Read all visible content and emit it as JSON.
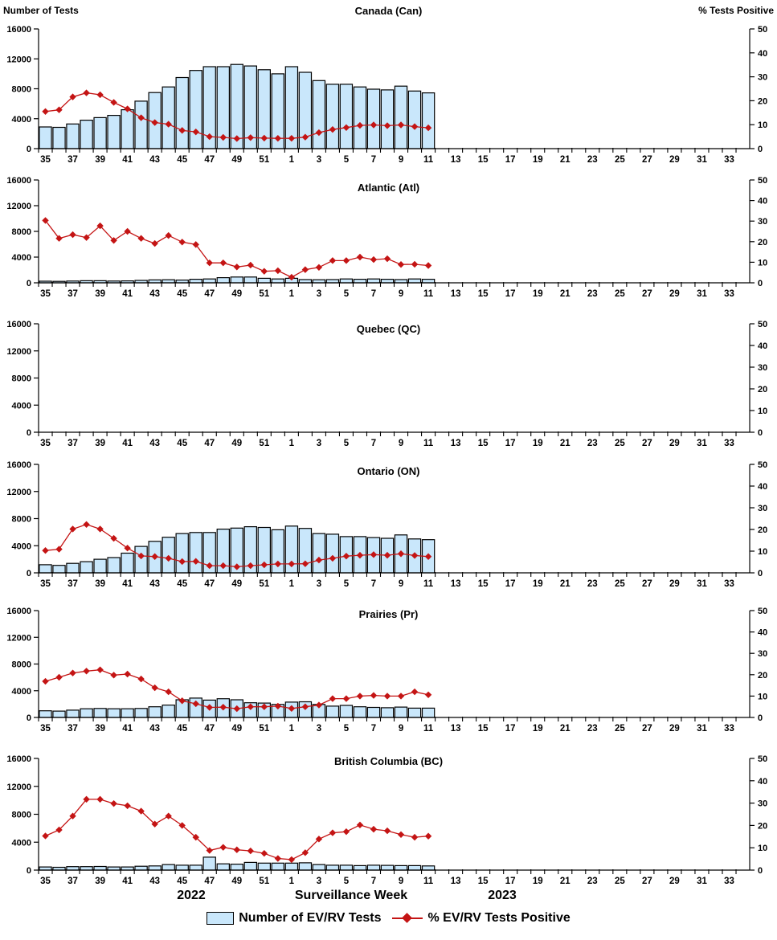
{
  "chart_data": {
    "type": "multi-panel bar+line",
    "x_label": "Surveillance Week",
    "x_years": [
      "2022",
      "2023"
    ],
    "weeks": [
      35,
      36,
      37,
      38,
      39,
      40,
      41,
      42,
      43,
      44,
      45,
      46,
      47,
      48,
      49,
      50,
      51,
      52,
      1,
      2,
      3,
      4,
      5,
      6,
      7,
      8,
      9,
      10,
      11
    ],
    "x_tick_labels": [
      "35",
      "37",
      "39",
      "41",
      "43",
      "45",
      "47",
      "49",
      "51",
      "1",
      "3",
      "5",
      "7",
      "9",
      "11",
      "13",
      "15",
      "17",
      "19",
      "21",
      "23",
      "25",
      "27",
      "29",
      "31",
      "33"
    ],
    "left_axis": {
      "label": "Number of Tests",
      "ticks": [
        0,
        4000,
        8000,
        12000,
        16000
      ],
      "max": 16000
    },
    "right_axis": {
      "label": "% Tests Positive",
      "ticks": [
        0,
        10,
        20,
        30,
        40,
        50
      ],
      "max": 50
    },
    "series_labels": {
      "bars": "Number of EV/RV Tests",
      "line": "% EV/RV Tests Positive"
    },
    "colors": {
      "bar_fill": "#C9E7FB",
      "bar_stroke": "#000000",
      "line": "#C41414"
    },
    "panels": [
      {
        "title": "Canada (Can)",
        "tests": [
          2900,
          2850,
          3300,
          3800,
          4150,
          4450,
          5200,
          6350,
          7500,
          8250,
          9500,
          10450,
          10950,
          10950,
          11250,
          11050,
          10550,
          10000,
          10950,
          10200,
          9100,
          8600,
          8600,
          8250,
          7950,
          7850,
          8350,
          7700,
          7450
        ],
        "pct_positive": [
          15.5,
          16.2,
          21.6,
          23.3,
          22.5,
          19.3,
          16.6,
          12.9,
          10.9,
          10.2,
          7.6,
          7.0,
          5.0,
          4.7,
          4.2,
          4.6,
          4.4,
          4.3,
          4.3,
          4.8,
          6.7,
          8.0,
          8.8,
          9.7,
          9.9,
          9.6,
          9.9,
          9.2,
          8.7
        ]
      },
      {
        "title": "Atlantic (Atl)",
        "tests": [
          250,
          230,
          280,
          330,
          330,
          280,
          300,
          380,
          450,
          470,
          430,
          550,
          600,
          800,
          900,
          900,
          700,
          600,
          700,
          500,
          480,
          500,
          600,
          550,
          600,
          550,
          500,
          600,
          550
        ],
        "pct_positive": [
          30.3,
          21.6,
          23.4,
          22.0,
          27.7,
          20.6,
          25.0,
          21.6,
          19.1,
          23.0,
          19.8,
          18.6,
          9.7,
          9.7,
          7.7,
          8.6,
          5.6,
          5.9,
          2.7,
          6.4,
          7.5,
          10.8,
          10.8,
          12.5,
          11.3,
          11.7,
          8.9,
          9.0,
          8.4
        ]
      },
      {
        "title": "Quebec (QC)",
        "tests": [],
        "pct_positive": []
      },
      {
        "title": "Ontario (ON)",
        "tests": [
          1200,
          1100,
          1400,
          1650,
          2000,
          2250,
          2900,
          3900,
          4650,
          5250,
          5800,
          5950,
          5950,
          6450,
          6600,
          6800,
          6700,
          6350,
          6900,
          6550,
          5800,
          5700,
          5350,
          5350,
          5200,
          5100,
          5600,
          5000,
          4900
        ],
        "pct_positive": [
          10.3,
          10.9,
          20.2,
          22.3,
          20.2,
          15.9,
          11.4,
          7.8,
          7.5,
          6.7,
          5.2,
          5.3,
          3.3,
          3.3,
          2.8,
          3.3,
          3.7,
          4.1,
          4.1,
          4.2,
          5.9,
          6.7,
          7.7,
          8.1,
          8.4,
          8.1,
          8.8,
          8.0,
          7.5
        ]
      },
      {
        "title": "Prairies (Pr)",
        "tests": [
          1000,
          950,
          1100,
          1300,
          1350,
          1300,
          1300,
          1350,
          1600,
          1850,
          2650,
          2900,
          2600,
          2800,
          2650,
          2200,
          2150,
          1950,
          2300,
          2350,
          1950,
          1700,
          1800,
          1600,
          1500,
          1450,
          1550,
          1400,
          1400
        ],
        "pct_positive": [
          16.9,
          18.8,
          20.8,
          21.7,
          22.3,
          19.8,
          20.3,
          18.0,
          13.9,
          12.0,
          7.8,
          6.4,
          4.7,
          4.8,
          4.1,
          5.0,
          5.0,
          5.3,
          4.2,
          5.0,
          5.8,
          8.8,
          8.8,
          10.0,
          10.3,
          10.0,
          10.0,
          12.0,
          10.6
        ]
      },
      {
        "title": "British Columbia (BC)",
        "tests": [
          450,
          400,
          500,
          500,
          520,
          450,
          450,
          550,
          600,
          800,
          700,
          700,
          1850,
          900,
          850,
          1100,
          1000,
          1000,
          1000,
          1050,
          800,
          700,
          700,
          650,
          700,
          680,
          650,
          650,
          600
        ],
        "pct_positive": [
          15.3,
          18.0,
          24.2,
          31.7,
          31.7,
          29.8,
          28.8,
          26.4,
          20.6,
          24.2,
          20.0,
          14.7,
          8.8,
          10.2,
          9.1,
          8.6,
          7.5,
          5.2,
          4.7,
          7.8,
          13.9,
          16.7,
          17.2,
          20.2,
          18.3,
          17.6,
          15.9,
          14.7,
          15.2
        ]
      }
    ]
  }
}
